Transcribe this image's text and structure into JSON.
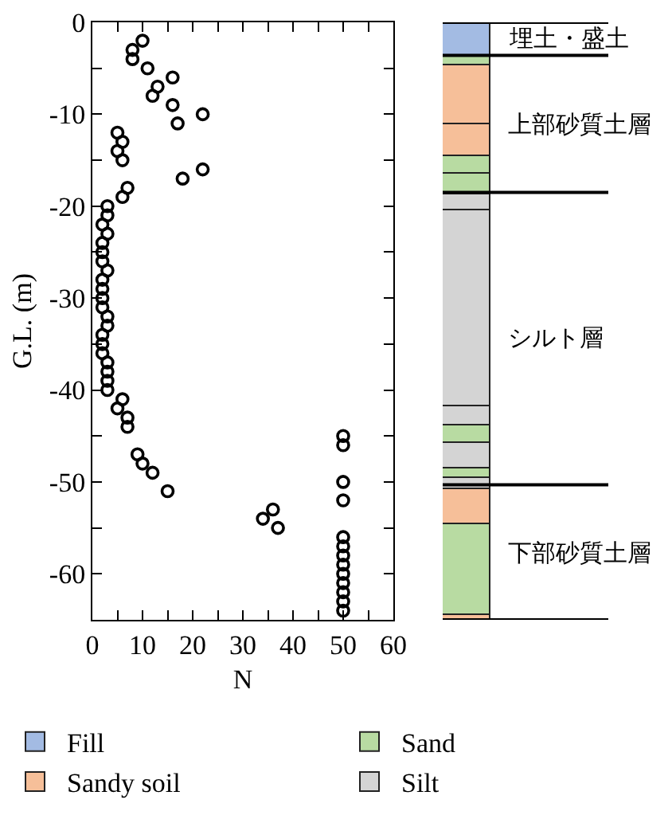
{
  "chart_data": [
    {
      "type": "scatter",
      "xlabel": "N",
      "ylabel": "G.L. (m)",
      "marker": "circle",
      "grid": false,
      "legend": false,
      "series": [
        {
          "color": "#000000",
          "x": [
            10,
            8,
            8,
            11,
            16,
            13,
            12,
            16,
            22,
            17,
            5,
            6,
            5,
            6,
            22,
            18,
            7,
            6,
            3,
            3,
            2,
            3,
            2,
            2,
            2,
            3,
            2,
            2,
            2,
            2,
            3,
            3,
            2,
            2,
            2,
            3,
            3,
            3,
            3,
            6,
            5,
            7,
            7,
            9,
            10,
            12,
            15,
            34,
            36,
            37,
            50,
            50,
            50,
            50,
            50,
            50,
            50,
            50,
            50,
            50,
            50,
            50,
            50
          ],
          "values": [
            -2,
            -3,
            -4,
            -5,
            -6,
            -7,
            -8,
            -9,
            -10,
            -11,
            -12,
            -13,
            -14,
            -15,
            -16,
            -17,
            -18,
            -19,
            -20,
            -21,
            -22,
            -23,
            -24,
            -25,
            -26,
            -27,
            -28,
            -29,
            -30,
            -31,
            -32,
            -33,
            -34,
            -35,
            -36,
            -37,
            -38,
            -39,
            -40,
            -41,
            -42,
            -43,
            -44,
            -47,
            -48,
            -49,
            -51,
            -54,
            -53,
            -55,
            -45,
            -46,
            -50,
            -52,
            -56,
            -57,
            -58,
            -59,
            -60,
            -61,
            -62,
            -63,
            -64
          ]
        }
      ],
      "xlim": [
        0,
        60
      ],
      "xticks": [
        0,
        {
          "value": 5,
          "label": null
        },
        10,
        {
          "value": 15,
          "label": null
        },
        20,
        {
          "value": 25,
          "label": null
        },
        30,
        {
          "value": 35,
          "label": null
        },
        40,
        {
          "value": 45,
          "label": null
        },
        50,
        {
          "value": 55,
          "label": null
        },
        60
      ],
      "ylim": [
        -65,
        0
      ],
      "yticks": [
        0,
        {
          "value": -5,
          "label": null
        },
        -10,
        {
          "value": -15,
          "label": null
        },
        -20,
        {
          "value": -25,
          "label": null
        },
        -30,
        {
          "value": -35,
          "label": null
        },
        -40,
        {
          "value": -45,
          "label": null
        },
        -50,
        {
          "value": -55,
          "label": null
        },
        -60
      ]
    },
    {
      "type": "bar",
      "stacked": true,
      "categories": [
        null
      ],
      "legend": "bottom",
      "tick_labels": false,
      "ylim": [
        -65,
        0
      ],
      "series": [
        {
          "name": "Fill",
          "color": "#a3bbe3",
          "values": [
            -3.6
          ]
        },
        {
          "name": "Sand",
          "color": "#b8dba2",
          "values": [
            -1.0
          ]
        },
        {
          "name": "Sandy soil",
          "color": "#f6bf99",
          "values": [
            -6.5
          ]
        },
        {
          "color": "#f6bf99",
          "values": [
            -3.4
          ]
        },
        {
          "color": "#b8dba2",
          "values": [
            -2.0
          ]
        },
        {
          "color": "#b8dba2",
          "values": [
            -2.2
          ]
        },
        {
          "name": "Silt",
          "color": "#d4d4d4",
          "values": [
            -1.7
          ]
        },
        {
          "color": "#d4d4d4",
          "values": [
            -21.4
          ]
        },
        {
          "color": "#d4d4d4",
          "values": [
            -2.0
          ]
        },
        {
          "color": "#b8dba2",
          "values": [
            -1.9
          ]
        },
        {
          "color": "#d4d4d4",
          "values": [
            -2.8
          ]
        },
        {
          "color": "#b8dba2",
          "values": [
            -1.0
          ]
        },
        {
          "color": "#d4d4d4",
          "values": [
            -1.2
          ]
        },
        {
          "color": "#f6bf99",
          "values": [
            -3.9
          ]
        },
        {
          "color": "#b8dba2",
          "values": [
            -9.9
          ]
        },
        {
          "color": "#f6bf99",
          "values": [
            -0.5
          ]
        }
      ],
      "ref_lines": [
        {
          "axis": "y",
          "value": 0
        },
        {
          "axis": "y",
          "value": -3.6
        },
        {
          "axis": "y",
          "value": -18.5
        },
        {
          "axis": "y",
          "value": -50.3
        },
        {
          "axis": "y",
          "value": -65
        }
      ],
      "annotations": [
        "埋土・盛土",
        "上部砂質土層",
        "シルト層",
        "下部砂質土層"
      ]
    }
  ]
}
